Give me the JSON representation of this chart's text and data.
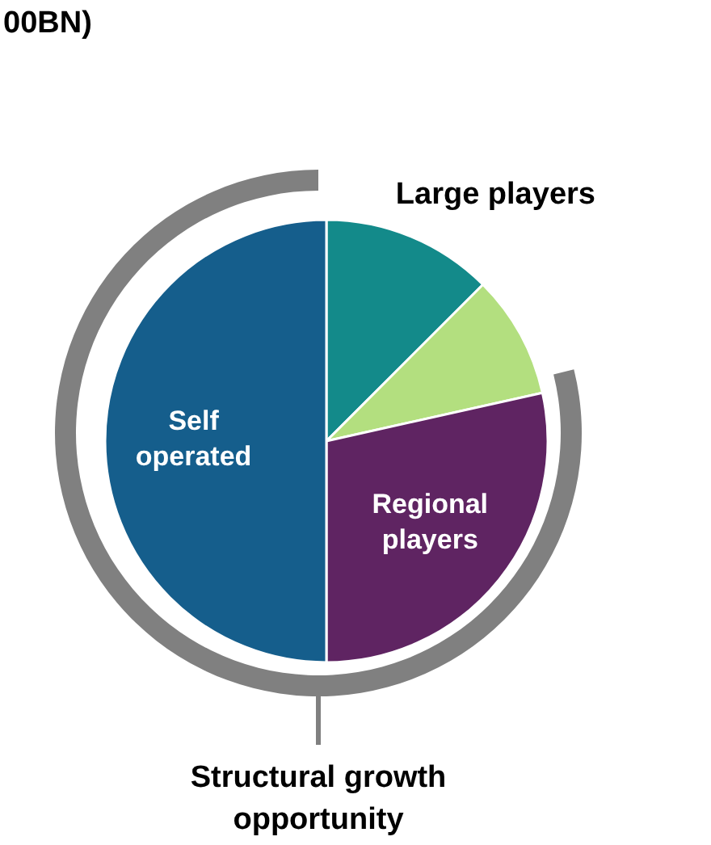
{
  "chart_data": {
    "type": "pie",
    "title": "00BN)",
    "categories": [
      "Large players",
      null,
      "Regional players",
      "Self operated"
    ],
    "values": [
      12.5,
      9,
      28.5,
      50
    ],
    "colors": [
      "#138a8a",
      "#b3df7f",
      "#5f2462",
      "#155e8c"
    ],
    "annotations": [
      "Structural growth opportunity"
    ]
  }
}
